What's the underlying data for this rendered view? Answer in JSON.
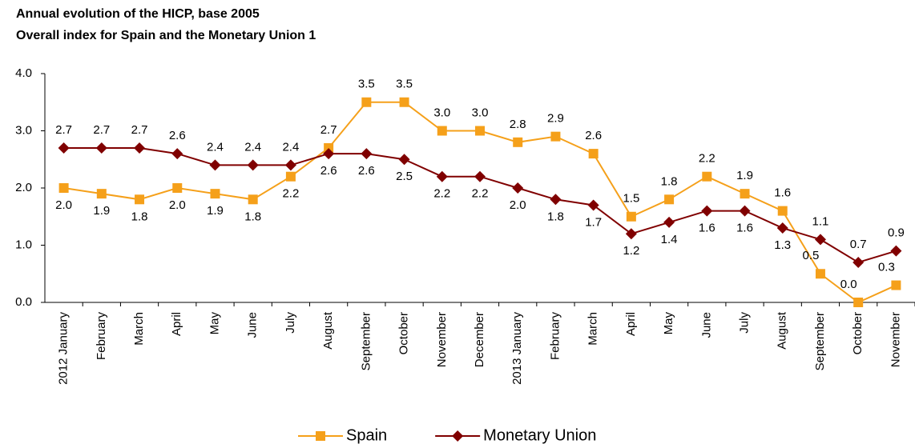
{
  "chart_data": {
    "type": "line",
    "title": "Annual evolution of the HICP, base 2005",
    "subtitle": "Overall index for Spain and the Monetary Union 1",
    "categories": [
      "2012 January",
      "February",
      "March",
      "April",
      "May",
      "June",
      "July",
      "August",
      "September",
      "October",
      "November",
      "December",
      "2013 January",
      "February",
      "March",
      "April",
      "May",
      "June",
      "July",
      "August",
      "September",
      "October",
      "November"
    ],
    "series": [
      {
        "name": "Spain",
        "color": "#f5a01a",
        "marker": "square",
        "values": [
          2.0,
          1.9,
          1.8,
          2.0,
          1.9,
          1.8,
          2.2,
          2.7,
          3.5,
          3.5,
          3.0,
          3.0,
          2.8,
          2.9,
          2.6,
          1.5,
          1.8,
          2.2,
          1.9,
          1.6,
          0.5,
          0.0,
          0.3
        ],
        "value_labels": [
          "2.0",
          "1.9",
          "1.8",
          "2.0",
          "1.9",
          "1.8",
          "2.2",
          "2.7",
          "3.5",
          "3.5",
          "3.0",
          "3.0",
          "2.8",
          "2.9",
          "2.6",
          "1.5",
          "1.8",
          "2.2",
          "1.9",
          "1.6",
          "0.5",
          "0.0",
          "0.3"
        ]
      },
      {
        "name": "Monetary Union",
        "color": "#800000",
        "marker": "diamond",
        "values": [
          2.7,
          2.7,
          2.7,
          2.6,
          2.4,
          2.4,
          2.4,
          2.6,
          2.6,
          2.5,
          2.2,
          2.2,
          2.0,
          1.8,
          1.7,
          1.2,
          1.4,
          1.6,
          1.6,
          1.3,
          1.1,
          0.7,
          0.9
        ],
        "value_labels": [
          "2.7",
          "2.7",
          "2.7",
          "2.6",
          "2.4",
          "2.4",
          "2.4",
          "2.6",
          "2.6",
          "2.5",
          "2.2",
          "2.2",
          "2.0",
          "1.8",
          "1.7",
          "1.2",
          "1.4",
          "1.6",
          "1.6",
          "1.3",
          "1.1",
          "0.7",
          "0.9"
        ]
      }
    ],
    "ylim": [
      0,
      4
    ],
    "yticks": [
      {
        "value": 0,
        "label": "0.0"
      },
      {
        "value": 1,
        "label": "1.0"
      },
      {
        "value": 2,
        "label": "2.0"
      },
      {
        "value": 3,
        "label": "3.0"
      },
      {
        "value": 4,
        "label": "4.0"
      }
    ],
    "grid": false,
    "legend": "bottom"
  }
}
